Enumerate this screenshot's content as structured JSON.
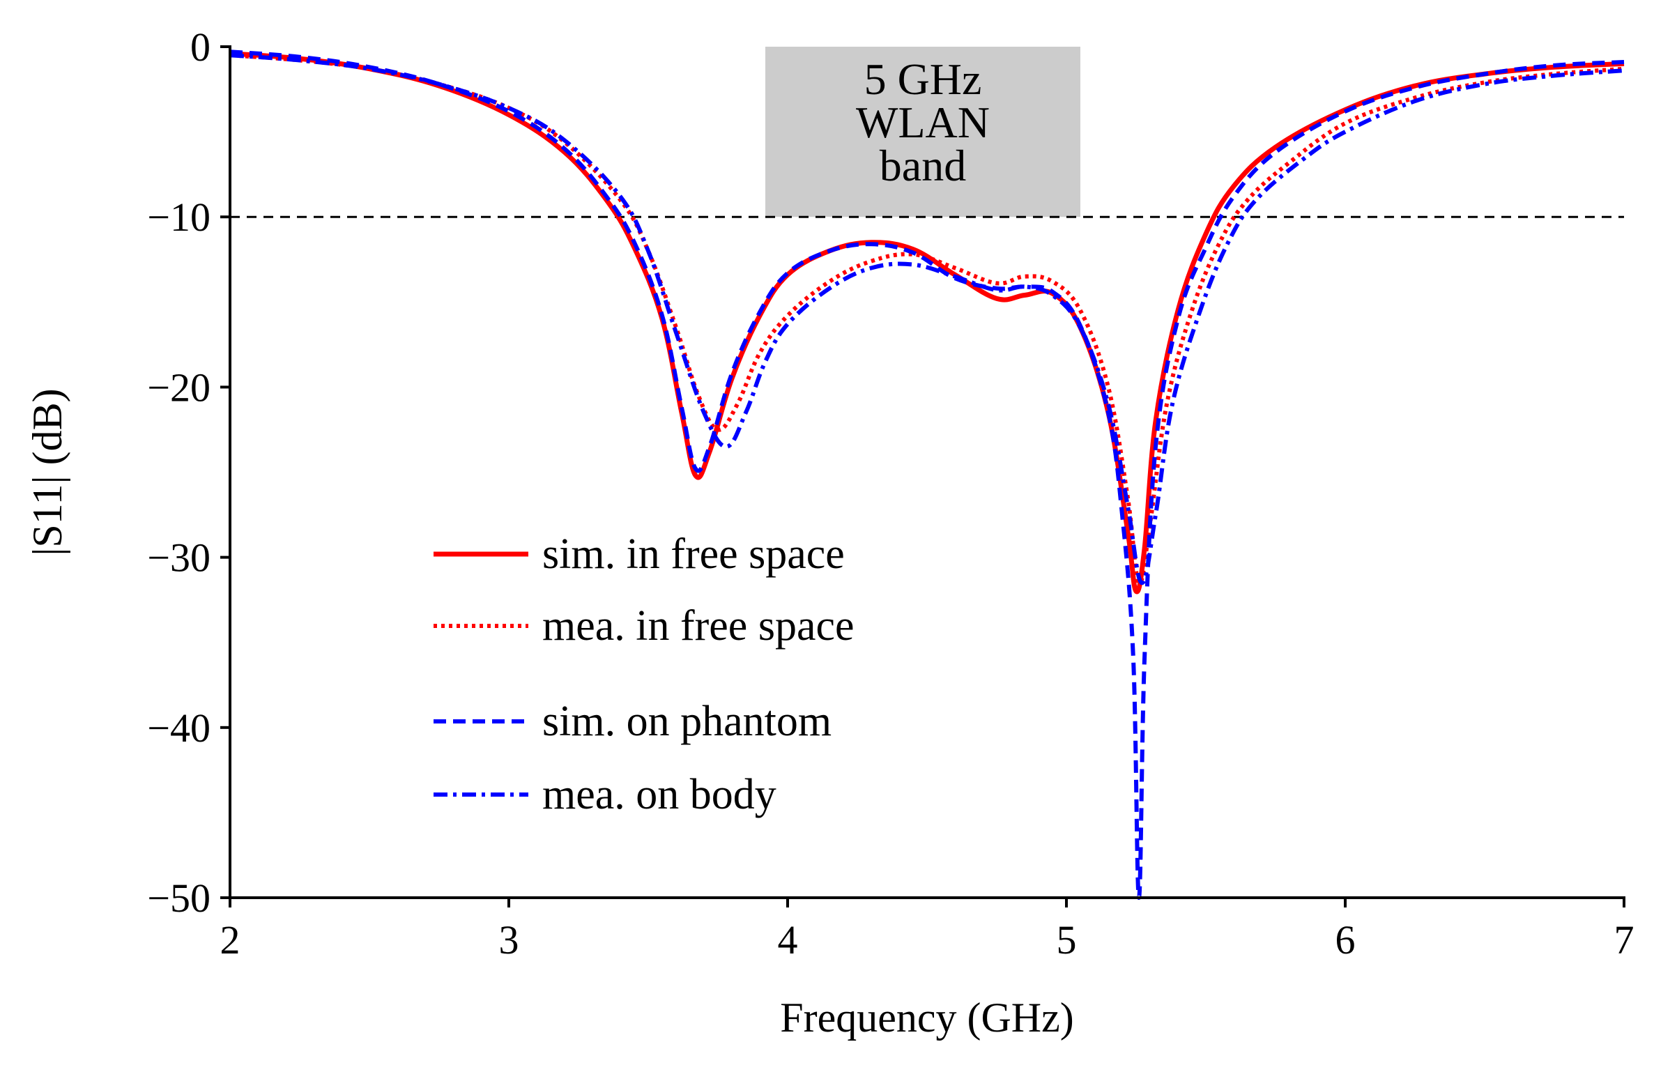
{
  "chart_data": {
    "type": "line",
    "title": "",
    "xlabel": "Frequency (GHz)",
    "ylabel": "|S11| (dB)",
    "xlim": [
      2,
      7
    ],
    "ylim": [
      -50,
      0
    ],
    "xticks": [
      2,
      3,
      4,
      5,
      6,
      7
    ],
    "yticks": [
      0,
      -10,
      -20,
      -30,
      -40,
      -50
    ],
    "xtick_labels": [
      "2",
      "3",
      "4",
      "5",
      "6",
      "7"
    ],
    "ytick_labels": [
      "0",
      "−10",
      "−20",
      "−30",
      "−40",
      "−50"
    ],
    "reference_line": {
      "y": -10,
      "style": "dashed",
      "color": "#000000"
    },
    "band": {
      "x_start": 3.92,
      "x_end": 5.05,
      "y_top": 0,
      "y_bottom": -10,
      "color": "#cccccc",
      "label_lines": [
        "5 GHz",
        "WLAN",
        "band"
      ]
    },
    "legend_placement": "lower-center",
    "series": [
      {
        "name": "sim. in free space",
        "color": "#ff0000",
        "style": "solid",
        "points": [
          [
            2.0,
            -0.4
          ],
          [
            2.25,
            -0.7
          ],
          [
            2.5,
            -1.3
          ],
          [
            2.75,
            -2.3
          ],
          [
            3.0,
            -4.0
          ],
          [
            3.2,
            -6.2
          ],
          [
            3.35,
            -9.0
          ],
          [
            3.45,
            -11.8
          ],
          [
            3.55,
            -16.0
          ],
          [
            3.62,
            -21.5
          ],
          [
            3.67,
            -25.2
          ],
          [
            3.72,
            -23.8
          ],
          [
            3.8,
            -19.5
          ],
          [
            3.9,
            -15.8
          ],
          [
            4.0,
            -13.4
          ],
          [
            4.15,
            -12.0
          ],
          [
            4.3,
            -11.5
          ],
          [
            4.45,
            -11.9
          ],
          [
            4.6,
            -13.4
          ],
          [
            4.75,
            -14.8
          ],
          [
            4.85,
            -14.6
          ],
          [
            4.95,
            -14.5
          ],
          [
            5.05,
            -16.5
          ],
          [
            5.15,
            -21.5
          ],
          [
            5.22,
            -28.5
          ],
          [
            5.25,
            -32.0
          ],
          [
            5.28,
            -29.5
          ],
          [
            5.32,
            -22.0
          ],
          [
            5.4,
            -15.5
          ],
          [
            5.5,
            -11.0
          ],
          [
            5.6,
            -8.2
          ],
          [
            5.75,
            -5.9
          ],
          [
            6.0,
            -3.7
          ],
          [
            6.25,
            -2.3
          ],
          [
            6.5,
            -1.6
          ],
          [
            6.75,
            -1.2
          ],
          [
            7.0,
            -1.0
          ]
        ]
      },
      {
        "name": "mea. in free space",
        "color": "#ff0000",
        "style": "dotted",
        "points": [
          [
            2.0,
            -0.5
          ],
          [
            2.25,
            -0.8
          ],
          [
            2.5,
            -1.3
          ],
          [
            2.75,
            -2.2
          ],
          [
            3.0,
            -3.6
          ],
          [
            3.2,
            -5.6
          ],
          [
            3.4,
            -9.0
          ],
          [
            3.5,
            -12.0
          ],
          [
            3.6,
            -16.5
          ],
          [
            3.68,
            -20.5
          ],
          [
            3.75,
            -22.5
          ],
          [
            3.82,
            -21.0
          ],
          [
            3.9,
            -18.0
          ],
          [
            4.0,
            -15.8
          ],
          [
            4.15,
            -13.8
          ],
          [
            4.3,
            -12.6
          ],
          [
            4.45,
            -12.2
          ],
          [
            4.6,
            -13.0
          ],
          [
            4.75,
            -13.9
          ],
          [
            4.85,
            -13.5
          ],
          [
            4.95,
            -13.8
          ],
          [
            5.05,
            -15.5
          ],
          [
            5.15,
            -20.0
          ],
          [
            5.22,
            -26.5
          ],
          [
            5.26,
            -31.5
          ],
          [
            5.3,
            -28.0
          ],
          [
            5.36,
            -21.0
          ],
          [
            5.45,
            -15.5
          ],
          [
            5.55,
            -11.5
          ],
          [
            5.65,
            -9.0
          ],
          [
            5.8,
            -6.8
          ],
          [
            6.0,
            -4.5
          ],
          [
            6.25,
            -3.0
          ],
          [
            6.5,
            -2.1
          ],
          [
            6.75,
            -1.6
          ],
          [
            7.0,
            -1.3
          ]
        ]
      },
      {
        "name": "sim. on phantom",
        "color": "#0000ff",
        "style": "dashed",
        "points": [
          [
            2.0,
            -0.3
          ],
          [
            2.25,
            -0.6
          ],
          [
            2.5,
            -1.2
          ],
          [
            2.75,
            -2.2
          ],
          [
            3.0,
            -3.8
          ],
          [
            3.2,
            -6.0
          ],
          [
            3.35,
            -8.8
          ],
          [
            3.45,
            -11.5
          ],
          [
            3.55,
            -15.8
          ],
          [
            3.62,
            -21.2
          ],
          [
            3.67,
            -24.8
          ],
          [
            3.72,
            -23.5
          ],
          [
            3.8,
            -19.2
          ],
          [
            3.9,
            -15.6
          ],
          [
            4.0,
            -13.3
          ],
          [
            4.15,
            -12.0
          ],
          [
            4.3,
            -11.6
          ],
          [
            4.45,
            -12.1
          ],
          [
            4.6,
            -13.6
          ],
          [
            4.75,
            -14.2
          ],
          [
            4.85,
            -14.1
          ],
          [
            4.95,
            -14.4
          ],
          [
            5.05,
            -16.4
          ],
          [
            5.15,
            -21.5
          ],
          [
            5.2,
            -27.5
          ],
          [
            5.24,
            -36.0
          ],
          [
            5.26,
            -50.0
          ],
          [
            5.28,
            -36.0
          ],
          [
            5.32,
            -23.5
          ],
          [
            5.4,
            -16.0
          ],
          [
            5.5,
            -11.8
          ],
          [
            5.6,
            -8.8
          ],
          [
            5.75,
            -6.2
          ],
          [
            6.0,
            -3.8
          ],
          [
            6.25,
            -2.4
          ],
          [
            6.5,
            -1.6
          ],
          [
            6.75,
            -1.1
          ],
          [
            7.0,
            -0.9
          ]
        ]
      },
      {
        "name": "mea. on body",
        "color": "#0000ff",
        "style": "dashdot",
        "points": [
          [
            2.0,
            -0.5
          ],
          [
            2.25,
            -0.8
          ],
          [
            2.5,
            -1.3
          ],
          [
            2.75,
            -2.2
          ],
          [
            3.0,
            -3.6
          ],
          [
            3.2,
            -5.5
          ],
          [
            3.4,
            -8.8
          ],
          [
            3.5,
            -12.0
          ],
          [
            3.6,
            -16.8
          ],
          [
            3.7,
            -21.5
          ],
          [
            3.78,
            -23.5
          ],
          [
            3.85,
            -21.5
          ],
          [
            3.92,
            -18.5
          ],
          [
            4.0,
            -16.3
          ],
          [
            4.15,
            -14.2
          ],
          [
            4.3,
            -13.0
          ],
          [
            4.45,
            -12.8
          ],
          [
            4.6,
            -13.5
          ],
          [
            4.75,
            -14.3
          ],
          [
            4.85,
            -14.1
          ],
          [
            4.95,
            -14.6
          ],
          [
            5.05,
            -16.5
          ],
          [
            5.15,
            -21.0
          ],
          [
            5.22,
            -27.0
          ],
          [
            5.27,
            -31.5
          ],
          [
            5.32,
            -27.5
          ],
          [
            5.38,
            -21.0
          ],
          [
            5.48,
            -15.5
          ],
          [
            5.58,
            -11.5
          ],
          [
            5.68,
            -9.0
          ],
          [
            5.85,
            -6.6
          ],
          [
            6.0,
            -5.0
          ],
          [
            6.25,
            -3.2
          ],
          [
            6.5,
            -2.2
          ],
          [
            6.75,
            -1.7
          ],
          [
            7.0,
            -1.4
          ]
        ]
      }
    ]
  }
}
